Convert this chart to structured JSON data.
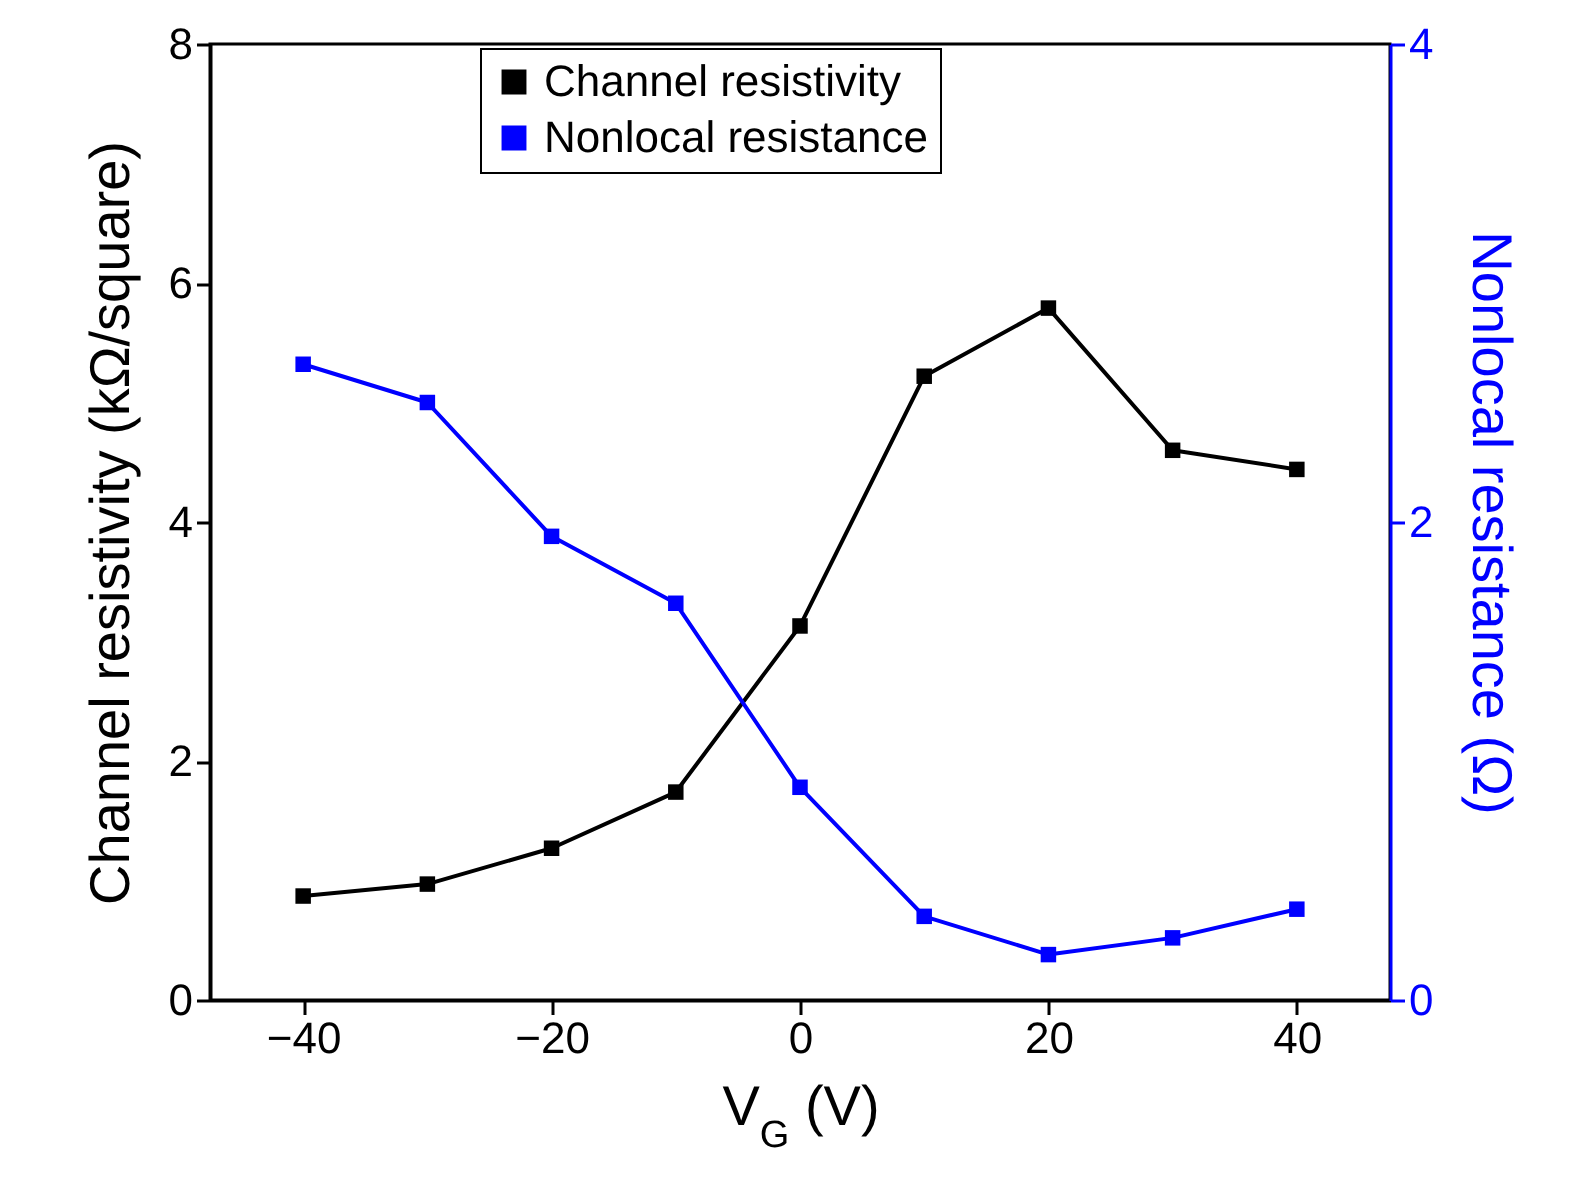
{
  "chart_data": {
    "type": "line",
    "xlabel": "V$_{G}$ (V)",
    "ylabel": "Channel resistivity (kΩ/square)",
    "y2label": "Nonlocal resistance (Ω)",
    "x": [
      -40,
      -30,
      -20,
      -10,
      0,
      10,
      20,
      30,
      40
    ],
    "series": [
      {
        "name": "Channel resistivity",
        "color": "#000000",
        "values": [
          0.87,
          0.97,
          1.27,
          1.74,
          3.13,
          5.22,
          5.79,
          4.6,
          4.44
        ]
      },
      {
        "name": "Nonlocal resistance",
        "color": "#0000ff",
        "axis": "y2",
        "values": [
          2.66,
          2.5,
          1.94,
          1.66,
          0.89,
          0.35,
          0.19,
          0.26,
          0.38
        ]
      }
    ],
    "xlim": [
      -47.5,
      47.5
    ],
    "xticks": [
      -40,
      -20,
      0,
      20,
      40
    ],
    "ylim": [
      0,
      8
    ],
    "yticks": [
      0,
      2,
      4,
      6,
      8
    ],
    "y2lim": [
      0,
      4
    ],
    "y2ticks": [
      0,
      2,
      4
    ],
    "marker": "square",
    "line_style": "solid",
    "legend": "top"
  }
}
